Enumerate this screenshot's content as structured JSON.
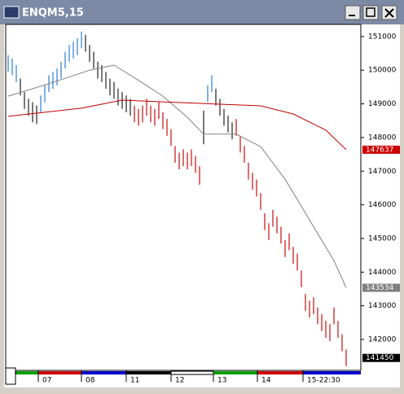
{
  "chart_data": {
    "type": "ohlc",
    "title": "ENQM5,15",
    "lows": [
      149950,
      149850,
      149650,
      149250,
      148850,
      148650,
      148450,
      148400,
      148750,
      149050,
      149350,
      149450,
      149550,
      149750,
      150050,
      150250,
      150350,
      150450,
      150650,
      150550,
      150250,
      150050,
      149750,
      149650,
      149450,
      149250,
      149150,
      148950,
      148850,
      148750,
      148650,
      148450,
      148350,
      148450,
      148650,
      148450,
      148350,
      148550,
      148250,
      148050,
      147750,
      147250,
      147050,
      147150,
      147050,
      147150,
      146950,
      146600,
      147800,
      149050,
      149350,
      148950,
      148650,
      148350,
      148150,
      147950,
      148050,
      147550,
      147250,
      146750,
      146450,
      146250,
      145850,
      145250,
      144950,
      145350,
      145150,
      144850,
      144450,
      144650,
      144250,
      144050,
      143550,
      142850,
      142650,
      142750,
      142450,
      142250,
      142050,
      141950,
      142450,
      142050,
      141650,
      141200
    ],
    "highs": [
      150450,
      150350,
      150150,
      149750,
      149350,
      149150,
      149050,
      148950,
      149250,
      149550,
      149850,
      149950,
      150050,
      150250,
      150550,
      150750,
      150850,
      150950,
      151150,
      151050,
      150750,
      150550,
      150250,
      150150,
      149950,
      149750,
      149650,
      149450,
      149350,
      149250,
      149150,
      148950,
      148850,
      148950,
      149150,
      148950,
      148850,
      149050,
      148750,
      148550,
      148250,
      147750,
      147550,
      147650,
      147550,
      147650,
      147450,
      147150,
      148800,
      149550,
      149850,
      149450,
      149150,
      148850,
      148650,
      148450,
      148550,
      148050,
      147750,
      147250,
      146950,
      146750,
      146350,
      145750,
      145450,
      145850,
      145650,
      145350,
      144950,
      145150,
      144750,
      144550,
      144050,
      143350,
      143150,
      143250,
      142950,
      142750,
      142550,
      142450,
      142950,
      142550,
      142150,
      141700
    ],
    "bar_colors": [
      "#3a87dc",
      "#3a87dc",
      "#3a87dc",
      "#333333",
      "#333333",
      "#333333",
      "#333333",
      "#333333",
      "#3a87dc",
      "#3a87dc",
      "#3a87dc",
      "#3a87dc",
      "#3a87dc",
      "#3a87dc",
      "#3a87dc",
      "#3a87dc",
      "#3a87dc",
      "#3a87dc",
      "#3a87dc",
      "#333333",
      "#333333",
      "#333333",
      "#333333",
      "#333333",
      "#333333",
      "#333333",
      "#333333",
      "#333333",
      "#333333",
      "#333333",
      "#333333",
      "#cc1f1f",
      "#cc1f1f",
      "#cc1f1f",
      "#cc1f1f",
      "#cc1f1f",
      "#cc1f1f",
      "#cc1f1f",
      "#cc1f1f",
      "#cc1f1f",
      "#cc1f1f",
      "#cc1f1f",
      "#cc1f1f",
      "#cc1f1f",
      "#cc1f1f",
      "#cc1f1f",
      "#cc1f1f",
      "#cc1f1f",
      "#333333",
      "#3a87dc",
      "#3a87dc",
      "#333333",
      "#333333",
      "#333333",
      "#333333",
      "#333333",
      "#cc1f1f",
      "#cc1f1f",
      "#cc1f1f",
      "#cc1f1f",
      "#cc1f1f",
      "#cc1f1f",
      "#cc1f1f",
      "#cc1f1f",
      "#cc1f1f",
      "#cc1f1f",
      "#cc1f1f",
      "#cc1f1f",
      "#cc1f1f",
      "#cc1f1f",
      "#cc1f1f",
      "#cc1f1f",
      "#cc1f1f",
      "#cc1f1f",
      "#cc1f1f",
      "#cc1f1f",
      "#cc1f1f",
      "#cc1f1f",
      "#cc1f1f",
      "#cc1f1f",
      "#cc1f1f",
      "#cc1f1f",
      "#cc1f1f",
      "#cc1f1f"
    ],
    "series": [
      {
        "color": "#808080",
        "x": [
          0,
          10,
          20,
          26,
          32,
          38,
          44,
          48,
          56,
          62,
          68,
          74,
          80,
          83
        ],
        "values": [
          149230,
          149600,
          150000,
          150150,
          149700,
          149230,
          148600,
          148100,
          148100,
          147730,
          146760,
          145550,
          144340,
          143534
        ]
      },
      {
        "color": "#c00000",
        "x": [
          0,
          18,
          28,
          38,
          52,
          62,
          70,
          78,
          83
        ],
        "values": [
          148630,
          148870,
          149110,
          149060,
          148990,
          148940,
          148700,
          148220,
          147637
        ]
      }
    ],
    "price_labels": [
      {
        "value": 147637,
        "color": "#cc0000"
      },
      {
        "value": 143534,
        "color": "#808080"
      },
      {
        "value": 141450,
        "color": "#000000"
      }
    ],
    "xlim": [
      -0.6,
      86.6
    ],
    "ylim": [
      141080,
      151360
    ],
    "yticks": [
      151000,
      150000,
      149000,
      148000,
      147000,
      146000,
      145000,
      144000,
      143000,
      142000
    ],
    "xticks": [
      {
        "value": 7.4,
        "label": "07"
      },
      {
        "value": 18,
        "label": "08"
      },
      {
        "value": 29,
        "label": "11"
      },
      {
        "value": 40,
        "label": "12"
      },
      {
        "value": 50.4,
        "label": "13"
      },
      {
        "value": 61.2,
        "label": "14"
      },
      {
        "value": 72.4,
        "label": "15-22:30"
      }
    ]
  }
}
